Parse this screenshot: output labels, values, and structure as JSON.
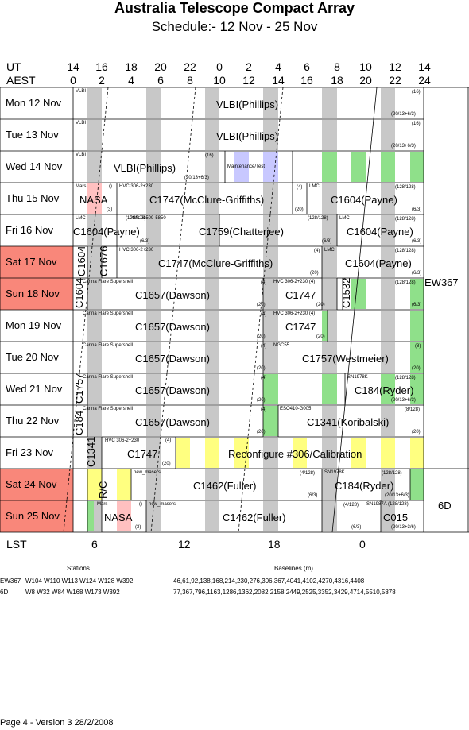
{
  "title": "Australia Telescope Compact Array",
  "subtitle": "Schedule:- 12 Nov - 25 Nov",
  "header": {
    "ut_label": "UT",
    "aest_label": "AEST",
    "ut_ticks": [
      "14",
      "16",
      "18",
      "20",
      "22",
      "0",
      "2",
      "4",
      "6",
      "8",
      "10",
      "12",
      "14"
    ],
    "aest_ticks": [
      "0",
      "2",
      "4",
      "6",
      "8",
      "10",
      "12",
      "14",
      "16",
      "18",
      "20",
      "22",
      "24"
    ]
  },
  "days": [
    {
      "label": "Mon  12 Nov",
      "weekend": false
    },
    {
      "label": "Tue   13 Nov",
      "weekend": false
    },
    {
      "label": "Wed  14 Nov",
      "weekend": false
    },
    {
      "label": "Thu   15 Nov",
      "weekend": false
    },
    {
      "label": "Fri     16 Nov",
      "weekend": false
    },
    {
      "label": "Sat   17 Nov",
      "weekend": true
    },
    {
      "label": "Sun  18 Nov",
      "weekend": true
    },
    {
      "label": "Mon  19 Nov",
      "weekend": false
    },
    {
      "label": "Tue   20 Nov",
      "weekend": false
    },
    {
      "label": "Wed  21 Nov",
      "weekend": false
    },
    {
      "label": "Thu   22 Nov",
      "weekend": false
    },
    {
      "label": "Fri     23 Nov",
      "weekend": false
    },
    {
      "label": "Sat   24 Nov",
      "weekend": true
    },
    {
      "label": "Sun  25 Nov",
      "weekend": true
    }
  ],
  "blocks": {
    "r0": {
      "tag": "VLBI",
      "main": "VLBI(Phillips)",
      "n1": "(16)",
      "n2": "(20/13+6/3)"
    },
    "r1": {
      "tag": "VLBI",
      "main": "VLBI(Phillips)",
      "n1": "(16)",
      "n2": "(20/13+6/3)"
    },
    "r2": {
      "tag": "VLBI",
      "main": "VLBI(Phillips)",
      "n1": "(16)",
      "n2": "(20/13+6/3)",
      "maint": "Maintenance/Test"
    },
    "r3": {
      "tag": "Mars",
      "main": "NASA",
      "n0": "()",
      "n3": "(3)",
      "tag2": "HVC 306-2+230",
      "main2": "C1747(McClure-Griffiths)",
      "n4": "(4)",
      "n5": "(20)",
      "tag3": "LMC",
      "main3": "C1604(Payne)",
      "n6": "(128/128)",
      "n7": "(6/3)"
    },
    "r4": {
      "tag": "LMC",
      "main": "C1604(Payne)",
      "n1": "(128/128)",
      "n2": "(6/3)",
      "tag2": "PSR J1509-5850",
      "main2": "C1759(Chatterjee)",
      "n3": "(128/128)",
      "n4": "(6/3)",
      "tag3": "LMC",
      "main3": "C1604(Payne)",
      "n5": "(128/128)",
      "n6": "(6/3)"
    },
    "r5": {
      "v1": "C1604",
      "v2": "C1676",
      "tag": "HVC 306-2+230",
      "main": "C1747(McClure-Griffiths)",
      "n1": "(4)",
      "n2": "(20)",
      "tag2": "LMC",
      "main2": "C1604(Payne)",
      "n3": "(128/128)",
      "n4": "(6/3)"
    },
    "r6": {
      "v1": "C1604",
      "tag": "Carina Flare Supershell",
      "main": "C1657(Dawson)",
      "n1": "(4)",
      "n2": "(20)",
      "tag2": "HVC 306-2+230 (4)",
      "main2": "C1747",
      "n3": "(20)",
      "v2": "C1532",
      "n4": "(128/128)",
      "n5": "(6/3)"
    },
    "r7": {
      "tag": "Carina Flare Supershell",
      "main": "C1657(Dawson)",
      "n1": "(4)",
      "n2": "(20)",
      "tag2": "HVC 306-2+230 (4)",
      "main2": "C1747",
      "n3": "(20)"
    },
    "r8": {
      "tag": "Carina Flare Supershell",
      "main": "C1657(Dawson)",
      "n1": "(4)",
      "n2": "(20)",
      "tag2": "NGC55",
      "main2": "C1757(Westmeier)",
      "n3": "(8)",
      "n4": "(20)"
    },
    "r9": {
      "v1": "C1757",
      "tag": "Carina Flare Supershell",
      "main": "C1657(Dawson)",
      "n1": "(4)",
      "n2": "(20)",
      "tag2": "SN1978K",
      "main2": "C184(Ryder)",
      "n3": "(128/128)",
      "n4": "(20/13+6/3)"
    },
    "r10": {
      "v1": "C184",
      "tag": "Carina Flare Supershell",
      "main": "C1657(Dawson)",
      "n1": "(4)",
      "n2": "(20)",
      "tag2": "ESO410-G005",
      "main2": "C1341(Koribalski)",
      "n3": "(8/128)",
      "n4": "(20)"
    },
    "r11": {
      "v1": "C1341",
      "tag": "HVC 306-2+230",
      "main": "C1747",
      "n1": "(4)",
      "n2": "(20)",
      "main2": "Reconfigure #306/Calibration"
    },
    "r12": {
      "v1": "R/C",
      "tag": "new_masers",
      "main": "C1462(Fuller)",
      "n1": "(4/128)",
      "n2": "(6/3)",
      "tag2": "SN1978K",
      "main2": "C184(Ryder)",
      "n3": "(128/128)",
      "n4": "(20/13+6/3)"
    },
    "r13": {
      "tag": "Mars",
      "n0": "()",
      "main": "NASA",
      "n3": "(3)",
      "tag2": "new_masers",
      "main2": "C1462(Fuller)",
      "n1": "(4/128)",
      "n2": "(6/3)",
      "tag3": "SN1987A (128/128)",
      "main3": "C015",
      "n4": "(20/13+3/6)"
    }
  },
  "configs": {
    "ew367": "EW367",
    "d6": "6D"
  },
  "lst": {
    "label": "LST",
    "ticks": [
      "6",
      "12",
      "18",
      "0"
    ]
  },
  "stations": {
    "stations_header": "Stations",
    "baselines_header": "Baselines (m)",
    "rows": [
      {
        "cfg": "EW367",
        "stations": "W104 W110 W113 W124 W128 W392",
        "baselines": "46,61,92,138,168,214,230,276,306,367,4041,4102,4270,4316,4408"
      },
      {
        "cfg": "6D",
        "stations": "W8 W32 W84 W168 W173 W392",
        "baselines": "77,367,796,1163,1286,1362,2082,2158,2449,2525,3352,3429,4714,5510,5878"
      }
    ]
  },
  "footer": "Page 4 - Version 3  28/2/2008",
  "colors": {
    "weekend": "#f9877a",
    "grey": "#c8c8c8",
    "green": "#8fe08a",
    "yellow": "#ffff80",
    "pink": "#ffc0c0",
    "blue": "#c8c8ff"
  }
}
